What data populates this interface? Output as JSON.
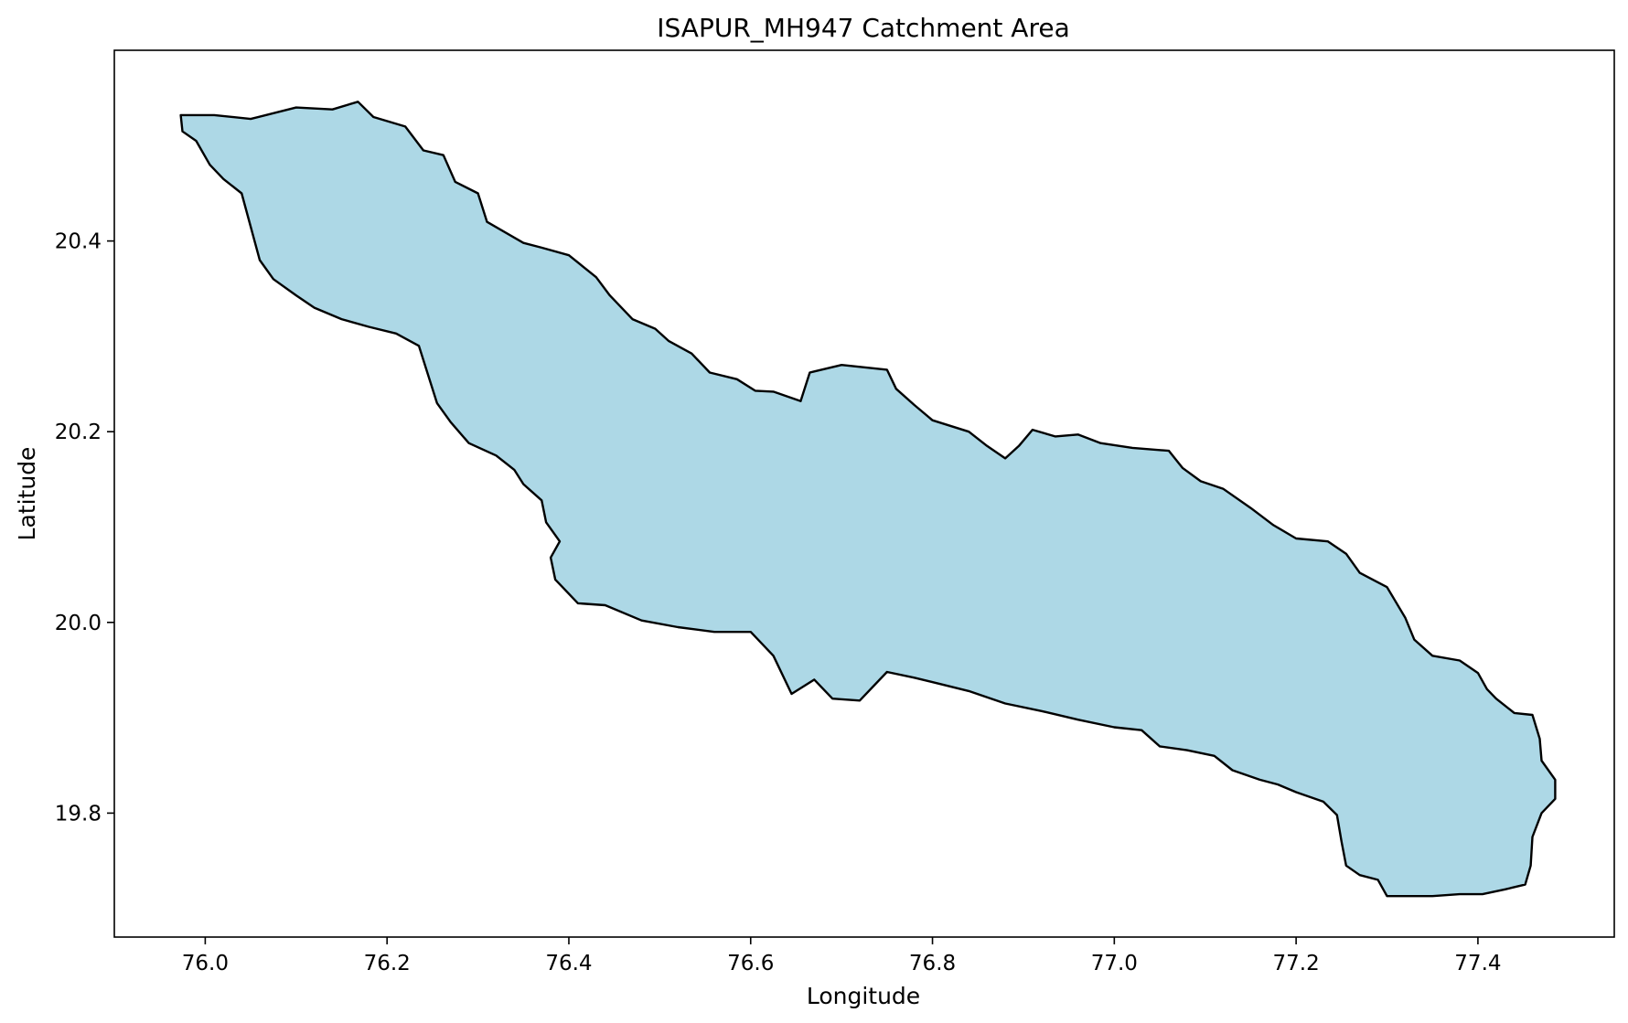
{
  "chart_data": {
    "type": "map",
    "title": "ISAPUR_MH947 Catchment Area",
    "xlabel": "Longitude",
    "ylabel": "Latitude",
    "xlim": [
      75.9,
      77.55
    ],
    "ylim": [
      19.67,
      20.6
    ],
    "xticks": [
      76.0,
      76.2,
      76.4,
      76.6,
      76.8,
      77.0,
      77.2,
      77.4
    ],
    "xtick_labels": [
      "76.0",
      "76.2",
      "76.4",
      "76.6",
      "76.8",
      "77.0",
      "77.2",
      "77.4"
    ],
    "yticks": [
      19.8,
      20.0,
      20.2,
      20.4
    ],
    "ytick_labels": [
      "19.8",
      "20.0",
      "20.2",
      "20.4"
    ],
    "grid": false,
    "fill_color": "#add8e6",
    "edge_color": "#000000",
    "polygon": [
      [
        75.973,
        20.532
      ],
      [
        76.01,
        20.532
      ],
      [
        76.05,
        20.528
      ],
      [
        76.1,
        20.54
      ],
      [
        76.14,
        20.538
      ],
      [
        76.168,
        20.546
      ],
      [
        76.185,
        20.53
      ],
      [
        76.22,
        20.52
      ],
      [
        76.24,
        20.495
      ],
      [
        76.262,
        20.49
      ],
      [
        76.275,
        20.462
      ],
      [
        76.3,
        20.45
      ],
      [
        76.31,
        20.42
      ],
      [
        76.35,
        20.398
      ],
      [
        76.37,
        20.393
      ],
      [
        76.4,
        20.385
      ],
      [
        76.43,
        20.362
      ],
      [
        76.445,
        20.343
      ],
      [
        76.47,
        20.318
      ],
      [
        76.495,
        20.308
      ],
      [
        76.51,
        20.295
      ],
      [
        76.535,
        20.282
      ],
      [
        76.555,
        20.262
      ],
      [
        76.585,
        20.255
      ],
      [
        76.605,
        20.243
      ],
      [
        76.625,
        20.242
      ],
      [
        76.655,
        20.232
      ],
      [
        76.665,
        20.262
      ],
      [
        76.7,
        20.27
      ],
      [
        76.75,
        20.265
      ],
      [
        76.76,
        20.245
      ],
      [
        76.78,
        20.228
      ],
      [
        76.8,
        20.212
      ],
      [
        76.84,
        20.2
      ],
      [
        76.86,
        20.185
      ],
      [
        76.88,
        20.172
      ],
      [
        76.895,
        20.185
      ],
      [
        76.91,
        20.202
      ],
      [
        76.935,
        20.195
      ],
      [
        76.96,
        20.197
      ],
      [
        76.985,
        20.188
      ],
      [
        77.02,
        20.183
      ],
      [
        77.06,
        20.18
      ],
      [
        77.075,
        20.162
      ],
      [
        77.095,
        20.148
      ],
      [
        77.12,
        20.14
      ],
      [
        77.15,
        20.12
      ],
      [
        77.175,
        20.102
      ],
      [
        77.2,
        20.088
      ],
      [
        77.235,
        20.085
      ],
      [
        77.255,
        20.072
      ],
      [
        77.27,
        20.052
      ],
      [
        77.3,
        20.037
      ],
      [
        77.32,
        20.005
      ],
      [
        77.33,
        19.982
      ],
      [
        77.35,
        19.965
      ],
      [
        77.38,
        19.96
      ],
      [
        77.4,
        19.947
      ],
      [
        77.41,
        19.93
      ],
      [
        77.42,
        19.92
      ],
      [
        77.44,
        19.905
      ],
      [
        77.46,
        19.903
      ],
      [
        77.468,
        19.878
      ],
      [
        77.47,
        19.855
      ],
      [
        77.485,
        19.835
      ],
      [
        77.485,
        19.815
      ],
      [
        77.47,
        19.8
      ],
      [
        77.46,
        19.775
      ],
      [
        77.458,
        19.745
      ],
      [
        77.452,
        19.725
      ],
      [
        77.43,
        19.72
      ],
      [
        77.405,
        19.715
      ],
      [
        77.38,
        19.715
      ],
      [
        77.35,
        19.713
      ],
      [
        77.3,
        19.713
      ],
      [
        77.29,
        19.73
      ],
      [
        77.27,
        19.735
      ],
      [
        77.255,
        19.745
      ],
      [
        77.25,
        19.77
      ],
      [
        77.245,
        19.798
      ],
      [
        77.23,
        19.812
      ],
      [
        77.2,
        19.822
      ],
      [
        77.18,
        19.83
      ],
      [
        77.16,
        19.835
      ],
      [
        77.13,
        19.845
      ],
      [
        77.11,
        19.86
      ],
      [
        77.08,
        19.866
      ],
      [
        77.05,
        19.87
      ],
      [
        77.03,
        19.887
      ],
      [
        77.0,
        19.89
      ],
      [
        76.96,
        19.898
      ],
      [
        76.92,
        19.907
      ],
      [
        76.88,
        19.915
      ],
      [
        76.84,
        19.928
      ],
      [
        76.81,
        19.935
      ],
      [
        76.78,
        19.942
      ],
      [
        76.75,
        19.948
      ],
      [
        76.72,
        19.918
      ],
      [
        76.69,
        19.92
      ],
      [
        76.67,
        19.94
      ],
      [
        76.645,
        19.925
      ],
      [
        76.625,
        19.965
      ],
      [
        76.6,
        19.99
      ],
      [
        76.56,
        19.99
      ],
      [
        76.52,
        19.995
      ],
      [
        76.48,
        20.002
      ],
      [
        76.44,
        20.018
      ],
      [
        76.41,
        20.02
      ],
      [
        76.385,
        20.045
      ],
      [
        76.38,
        20.068
      ],
      [
        76.39,
        20.085
      ],
      [
        76.375,
        20.105
      ],
      [
        76.37,
        20.128
      ],
      [
        76.35,
        20.145
      ],
      [
        76.34,
        20.16
      ],
      [
        76.32,
        20.175
      ],
      [
        76.29,
        20.188
      ],
      [
        76.27,
        20.21
      ],
      [
        76.255,
        20.23
      ],
      [
        76.245,
        20.26
      ],
      [
        76.235,
        20.29
      ],
      [
        76.21,
        20.303
      ],
      [
        76.18,
        20.31
      ],
      [
        76.15,
        20.318
      ],
      [
        76.12,
        20.33
      ],
      [
        76.1,
        20.343
      ],
      [
        76.075,
        20.36
      ],
      [
        76.06,
        20.38
      ],
      [
        76.05,
        20.415
      ],
      [
        76.04,
        20.45
      ],
      [
        76.02,
        20.465
      ],
      [
        76.005,
        20.48
      ],
      [
        75.99,
        20.505
      ],
      [
        75.975,
        20.515
      ],
      [
        75.973,
        20.532
      ]
    ]
  }
}
